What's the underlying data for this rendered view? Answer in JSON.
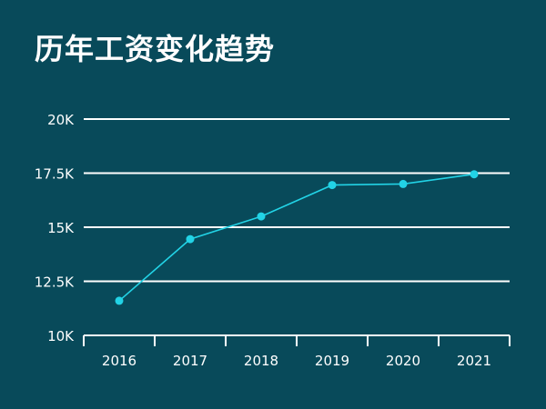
{
  "colors": {
    "background": "#084a5a",
    "text": "#ffffff",
    "grid": "#ffffff",
    "series": "#22d3e6"
  },
  "chart_data": {
    "type": "line",
    "title": "历年工资变化趋势",
    "xlabel": "",
    "ylabel": "",
    "categories": [
      "2016",
      "2017",
      "2018",
      "2019",
      "2020",
      "2021"
    ],
    "series": [
      {
        "values": [
          11600,
          14450,
          15500,
          16950,
          17000,
          17450
        ]
      }
    ],
    "ylim": [
      10000,
      20000
    ],
    "y_ticks": [
      10000,
      12500,
      15000,
      17500,
      20000
    ],
    "y_tick_labels": [
      "10K",
      "12.5K",
      "15K",
      "17.5K",
      "20K"
    ],
    "grid": true,
    "legend": "none",
    "markers": true
  }
}
